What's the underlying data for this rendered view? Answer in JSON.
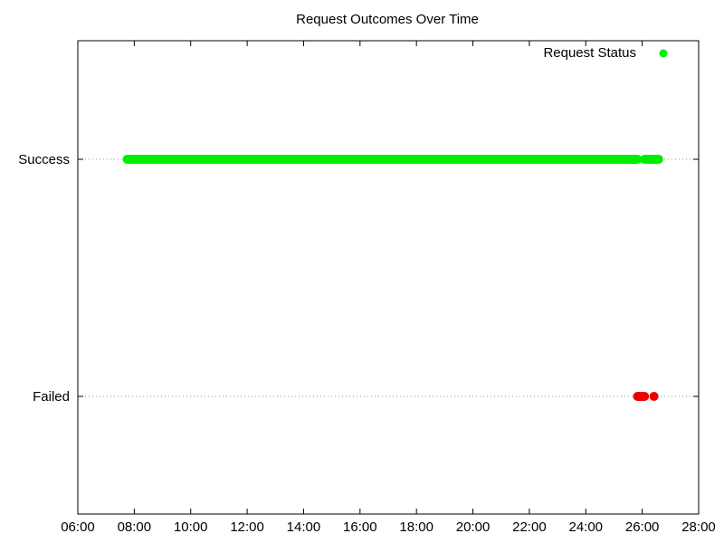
{
  "chart_data": {
    "type": "scatter",
    "title": "Request Outcomes Over Time",
    "xlabel": "",
    "ylabel": "",
    "x_axis": {
      "min": "06:00",
      "max": "28:00",
      "ticks": [
        "06:00",
        "08:00",
        "10:00",
        "12:00",
        "14:00",
        "16:00",
        "18:00",
        "20:00",
        "22:00",
        "24:00",
        "26:00",
        "28:00"
      ]
    },
    "y_axis": {
      "categories": [
        "Failed",
        "Success"
      ]
    },
    "grid": "horizontal dotted at category levels",
    "legend": {
      "position": "top-right",
      "label": "Request Status"
    },
    "series": [
      {
        "name": "Request Status",
        "color": "#00ee00",
        "category": "Success",
        "segments": [
          [
            "07:45",
            "25:50"
          ],
          [
            "26:05",
            "26:35"
          ]
        ]
      },
      {
        "name": "Request Status",
        "color": "#ee0000",
        "category": "Failed",
        "segments": [
          [
            "25:50",
            "26:05"
          ]
        ],
        "points": [
          "26:25"
        ]
      }
    ]
  }
}
